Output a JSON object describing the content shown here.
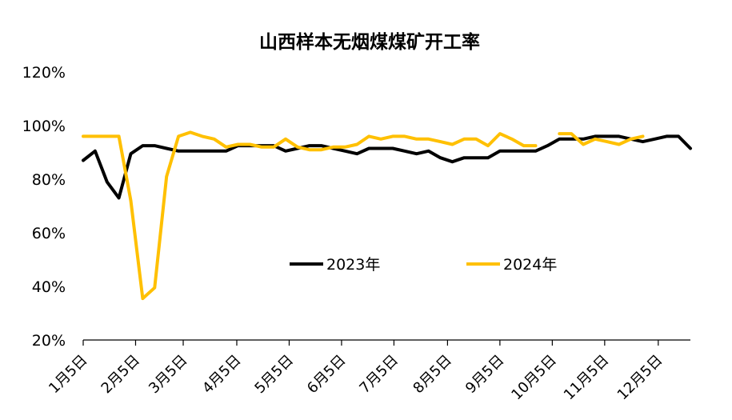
{
  "chart_data": {
    "type": "line",
    "title": "山西样本无烟煤煤矿开工率",
    "xlabel": "",
    "ylabel": "",
    "ylim": [
      20,
      120
    ],
    "yticks": [
      20,
      40,
      60,
      80,
      100,
      120
    ],
    "ytick_labels": [
      "20%",
      "40%",
      "60%",
      "80%",
      "100%",
      "120%"
    ],
    "x_tick_labels": [
      "1月5日",
      "2月5日",
      "3月5日",
      "4月5日",
      "5月5日",
      "6月5日",
      "7月5日",
      "8月5日",
      "9月5日",
      "10月5日",
      "11月5日",
      "12月5日"
    ],
    "x_tick_week_index": [
      0,
      4.4,
      8.4,
      12.9,
      17.3,
      21.7,
      26.1,
      30.6,
      35.0,
      39.4,
      43.8,
      48.3
    ],
    "num_weeks": 52,
    "grid": false,
    "legend_position": "center",
    "series": [
      {
        "name": "2023年",
        "color": "#000000",
        "values": [
          87,
          90.5,
          79,
          73,
          89.5,
          92.5,
          92.5,
          91.5,
          90.5,
          90.5,
          90.5,
          90.5,
          90.5,
          92.5,
          92.5,
          92.5,
          92.5,
          90.5,
          91.5,
          92.5,
          92.5,
          91.5,
          90.5,
          89.5,
          91.5,
          91.5,
          91.5,
          90.5,
          89.5,
          90.5,
          88,
          86.5,
          88,
          88,
          88,
          90.5,
          90.5,
          90.5,
          90.5,
          92.5,
          95,
          95,
          95,
          96,
          96,
          96,
          95,
          94,
          95,
          96,
          96,
          91.5
        ]
      },
      {
        "name": "2024年",
        "color": "#FFC000",
        "values": [
          96,
          96,
          96,
          96,
          72,
          35.5,
          39.5,
          81,
          96,
          97.5,
          96,
          95,
          92,
          93,
          93,
          92,
          92,
          95,
          92,
          91,
          91,
          92,
          92,
          93,
          96,
          95,
          96,
          96,
          95,
          95,
          94,
          93,
          95,
          95,
          92.5,
          97,
          95,
          92.5,
          92.5,
          null,
          97,
          97,
          93,
          95,
          94,
          93,
          95,
          96,
          null,
          null,
          null,
          null
        ]
      }
    ]
  }
}
